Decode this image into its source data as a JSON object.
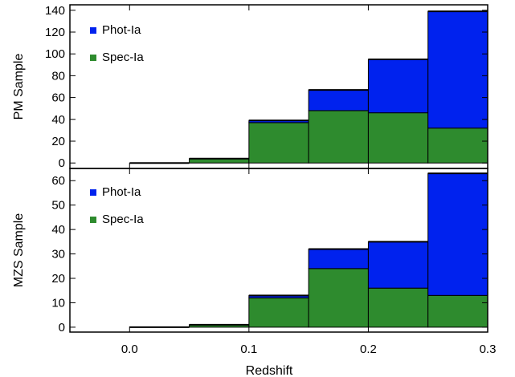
{
  "chart_data": [
    {
      "type": "bar",
      "stacked": true,
      "panel": "top",
      "x_bins": [
        0.0,
        0.05,
        0.1,
        0.15,
        0.2,
        0.25,
        0.3
      ],
      "xlim": [
        -0.05,
        0.3
      ],
      "ylim": [
        -5,
        145
      ],
      "yticks": [
        0,
        20,
        40,
        60,
        80,
        100,
        120,
        140
      ],
      "xlabel": "",
      "ylabel": "PM Sample",
      "series": [
        {
          "name": "Spec-Ia",
          "color": "#2e8b2e",
          "values": [
            0,
            4,
            37,
            48,
            46,
            32
          ]
        },
        {
          "name": "Phot-Ia",
          "color": "#0022ee",
          "values": [
            0,
            0,
            2,
            19,
            49,
            107
          ]
        }
      ],
      "legend": "top-left",
      "grid": false
    },
    {
      "type": "bar",
      "stacked": true,
      "panel": "bottom",
      "x_bins": [
        0.0,
        0.05,
        0.1,
        0.15,
        0.2,
        0.25,
        0.3
      ],
      "xlim": [
        -0.05,
        0.3
      ],
      "ylim": [
        -2,
        65
      ],
      "yticks": [
        0,
        10,
        20,
        30,
        40,
        50,
        60
      ],
      "xticks": [
        0.0,
        0.1,
        0.2,
        0.3
      ],
      "xticklabels": [
        "0.0",
        "0.1",
        "0.2",
        "0.3"
      ],
      "xlabel": "Redshift",
      "ylabel": "MZS Sample",
      "series": [
        {
          "name": "Spec-Ia",
          "color": "#2e8b2e",
          "values": [
            0,
            1,
            12,
            24,
            16,
            13
          ]
        },
        {
          "name": "Phot-Ia",
          "color": "#0022ee",
          "values": [
            0,
            0,
            1,
            8,
            19,
            50
          ]
        }
      ],
      "legend": "top-left",
      "grid": false
    }
  ]
}
